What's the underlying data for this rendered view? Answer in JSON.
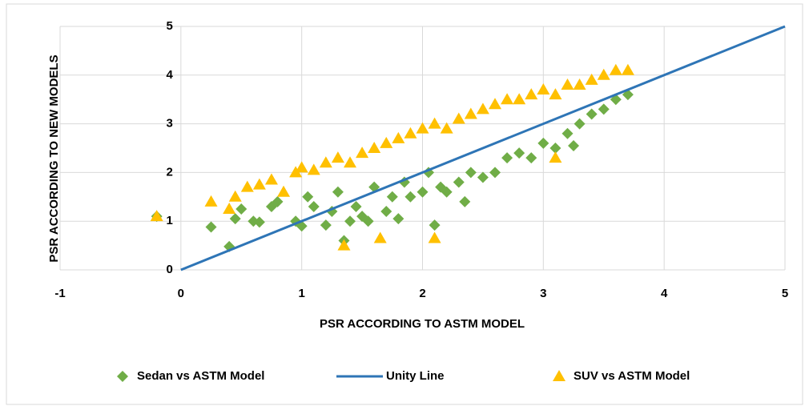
{
  "chart_data": {
    "type": "scatter",
    "x_label": "PSR ACCORDING TO ASTM MODEL",
    "y_label": "PSR ACCORDING TO NEW MODELS",
    "xlim": [
      -1,
      5
    ],
    "ylim": [
      0,
      5
    ],
    "xticks": [
      -1,
      0,
      1,
      2,
      3,
      4,
      5
    ],
    "yticks": [
      0,
      1,
      2,
      3,
      4,
      5
    ],
    "grid": true,
    "legend": "bottom",
    "series": [
      {
        "name": "Sedan vs ASTM Model",
        "color": "#70ad47",
        "marker": "diamond",
        "x": [
          -0.2,
          0.25,
          0.4,
          0.45,
          0.5,
          0.6,
          0.65,
          0.75,
          0.8,
          0.95,
          1.0,
          1.05,
          1.1,
          1.2,
          1.25,
          1.3,
          1.35,
          1.4,
          1.45,
          1.5,
          1.55,
          1.6,
          1.7,
          1.75,
          1.8,
          1.85,
          1.9,
          2.0,
          2.05,
          2.1,
          2.15,
          2.2,
          2.3,
          2.35,
          2.4,
          2.5,
          2.6,
          2.7,
          2.8,
          2.9,
          3.0,
          3.1,
          3.2,
          3.25,
          3.3,
          3.4,
          3.5,
          3.6,
          3.7
        ],
        "values": [
          1.1,
          0.88,
          0.48,
          1.05,
          1.25,
          1.0,
          0.98,
          1.3,
          1.4,
          1.0,
          0.9,
          1.5,
          1.3,
          0.92,
          1.2,
          1.6,
          0.6,
          1.0,
          1.3,
          1.1,
          1.0,
          1.7,
          1.2,
          1.5,
          1.05,
          1.8,
          1.5,
          1.6,
          2.0,
          0.92,
          1.7,
          1.6,
          1.8,
          1.4,
          2.0,
          1.9,
          2.0,
          2.3,
          2.4,
          2.3,
          2.6,
          2.5,
          2.8,
          2.55,
          3.0,
          3.2,
          3.3,
          3.5,
          3.6
        ]
      },
      {
        "name": "Unity Line",
        "color": "#2e75b6",
        "marker": "line",
        "x": [
          0,
          5
        ],
        "values": [
          0,
          5
        ]
      },
      {
        "name": "SUV vs ASTM Model",
        "color": "#ffc000",
        "marker": "triangle",
        "x": [
          -0.2,
          0.25,
          0.4,
          0.45,
          0.55,
          0.65,
          0.75,
          0.85,
          0.95,
          1.0,
          1.1,
          1.2,
          1.3,
          1.35,
          1.4,
          1.5,
          1.6,
          1.65,
          1.7,
          1.8,
          1.9,
          2.0,
          2.1,
          2.1,
          2.2,
          2.3,
          2.4,
          2.5,
          2.6,
          2.7,
          2.8,
          2.9,
          3.0,
          3.1,
          3.1,
          3.2,
          3.3,
          3.4,
          3.5,
          3.6,
          3.7
        ],
        "values": [
          1.1,
          1.4,
          1.25,
          1.5,
          1.7,
          1.75,
          1.85,
          1.6,
          2.0,
          2.1,
          2.05,
          2.2,
          2.3,
          0.5,
          2.2,
          2.4,
          2.5,
          0.65,
          2.6,
          2.7,
          2.8,
          2.9,
          0.65,
          3.0,
          2.9,
          3.1,
          3.2,
          3.3,
          3.4,
          3.5,
          3.5,
          3.6,
          3.7,
          2.3,
          3.6,
          3.8,
          3.8,
          3.9,
          4.0,
          4.1,
          4.1
        ]
      }
    ]
  }
}
